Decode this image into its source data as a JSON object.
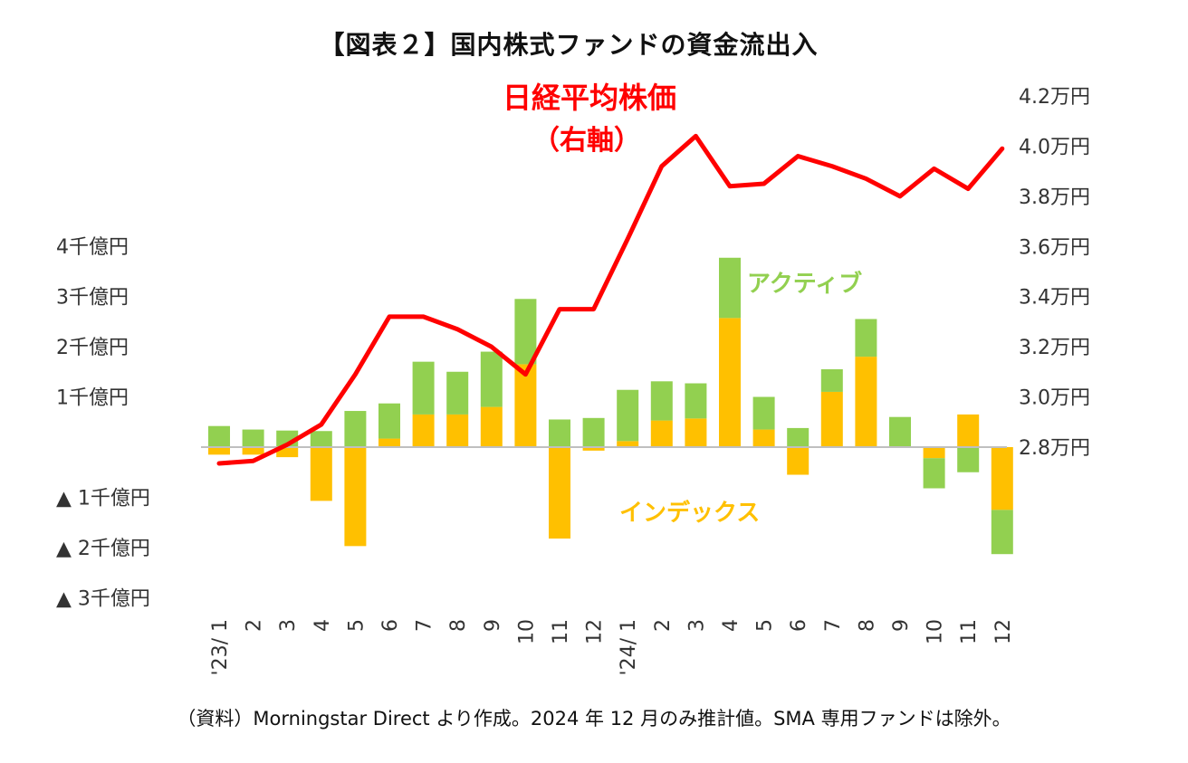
{
  "title": "【図表２】国内株式ファンドの資金流出入",
  "source_note": "（資料）Morningstar Direct より作成。2024 年 12 月のみ推計値。SMA 専用ファンドは除外。",
  "colors": {
    "active": "#92d050",
    "index": "#ffc000",
    "nikkei": "#ff0000",
    "zero_line": "#bfbfbf"
  },
  "chart_data": {
    "type": "bar",
    "stacked": true,
    "categories": [
      "'23/ 1",
      "2",
      "3",
      "4",
      "5",
      "6",
      "7",
      "8",
      "9",
      "10",
      "11",
      "12",
      "'24/ 1",
      "2",
      "3",
      "4",
      "5",
      "6",
      "7",
      "8",
      "9",
      "10",
      "11",
      "12"
    ],
    "y_left": {
      "unit": "千億円",
      "ticks": [
        4,
        3,
        2,
        1,
        -1,
        -2,
        -3
      ],
      "tick_labels": [
        "4千億円",
        "3千億円",
        "2千億円",
        "1千億円",
        "▲ 1千億円",
        "▲ 2千億円",
        "▲ 3千億円"
      ],
      "range": [
        -3,
        4
      ]
    },
    "y_right": {
      "unit": "万円",
      "ticks": [
        4.2,
        4.0,
        3.8,
        3.6,
        3.4,
        3.2,
        3.0,
        2.8
      ],
      "tick_labels": [
        "4.2万円",
        "4.0万円",
        "3.8万円",
        "3.6万円",
        "3.4万円",
        "3.2万円",
        "3.0万円",
        "2.8万円"
      ],
      "range": [
        2.8,
        4.2
      ]
    },
    "series": [
      {
        "name": "インデックス",
        "axis": "left",
        "values": [
          -0.15,
          -0.15,
          -0.2,
          -1.07,
          -1.97,
          0.17,
          0.65,
          0.65,
          0.8,
          1.65,
          -1.82,
          -0.07,
          0.12,
          0.53,
          0.57,
          2.57,
          0.35,
          -0.55,
          1.1,
          1.8,
          0.0,
          -0.22,
          0.65,
          -1.25
        ]
      },
      {
        "name": "アクティブ",
        "axis": "left",
        "values": [
          0.42,
          0.35,
          0.33,
          0.32,
          0.72,
          0.7,
          1.05,
          0.85,
          1.1,
          1.3,
          0.55,
          0.58,
          1.02,
          0.78,
          0.7,
          1.2,
          0.65,
          0.38,
          0.45,
          0.75,
          0.6,
          -0.6,
          -0.5,
          -0.88
        ]
      },
      {
        "name": "日経平均株価",
        "axis": "right",
        "values": [
          2.735,
          2.745,
          2.81,
          2.89,
          3.09,
          3.32,
          3.32,
          3.27,
          3.2,
          3.09,
          3.35,
          3.35,
          3.63,
          3.92,
          4.04,
          3.84,
          3.85,
          3.96,
          3.92,
          3.87,
          3.8,
          3.91,
          3.83,
          3.99
        ]
      }
    ],
    "annotations": {
      "nikkei_label": "日経平均株価",
      "nikkei_label_sub": "（右軸）",
      "active_label": "アクティブ",
      "index_label": "インデックス"
    }
  }
}
